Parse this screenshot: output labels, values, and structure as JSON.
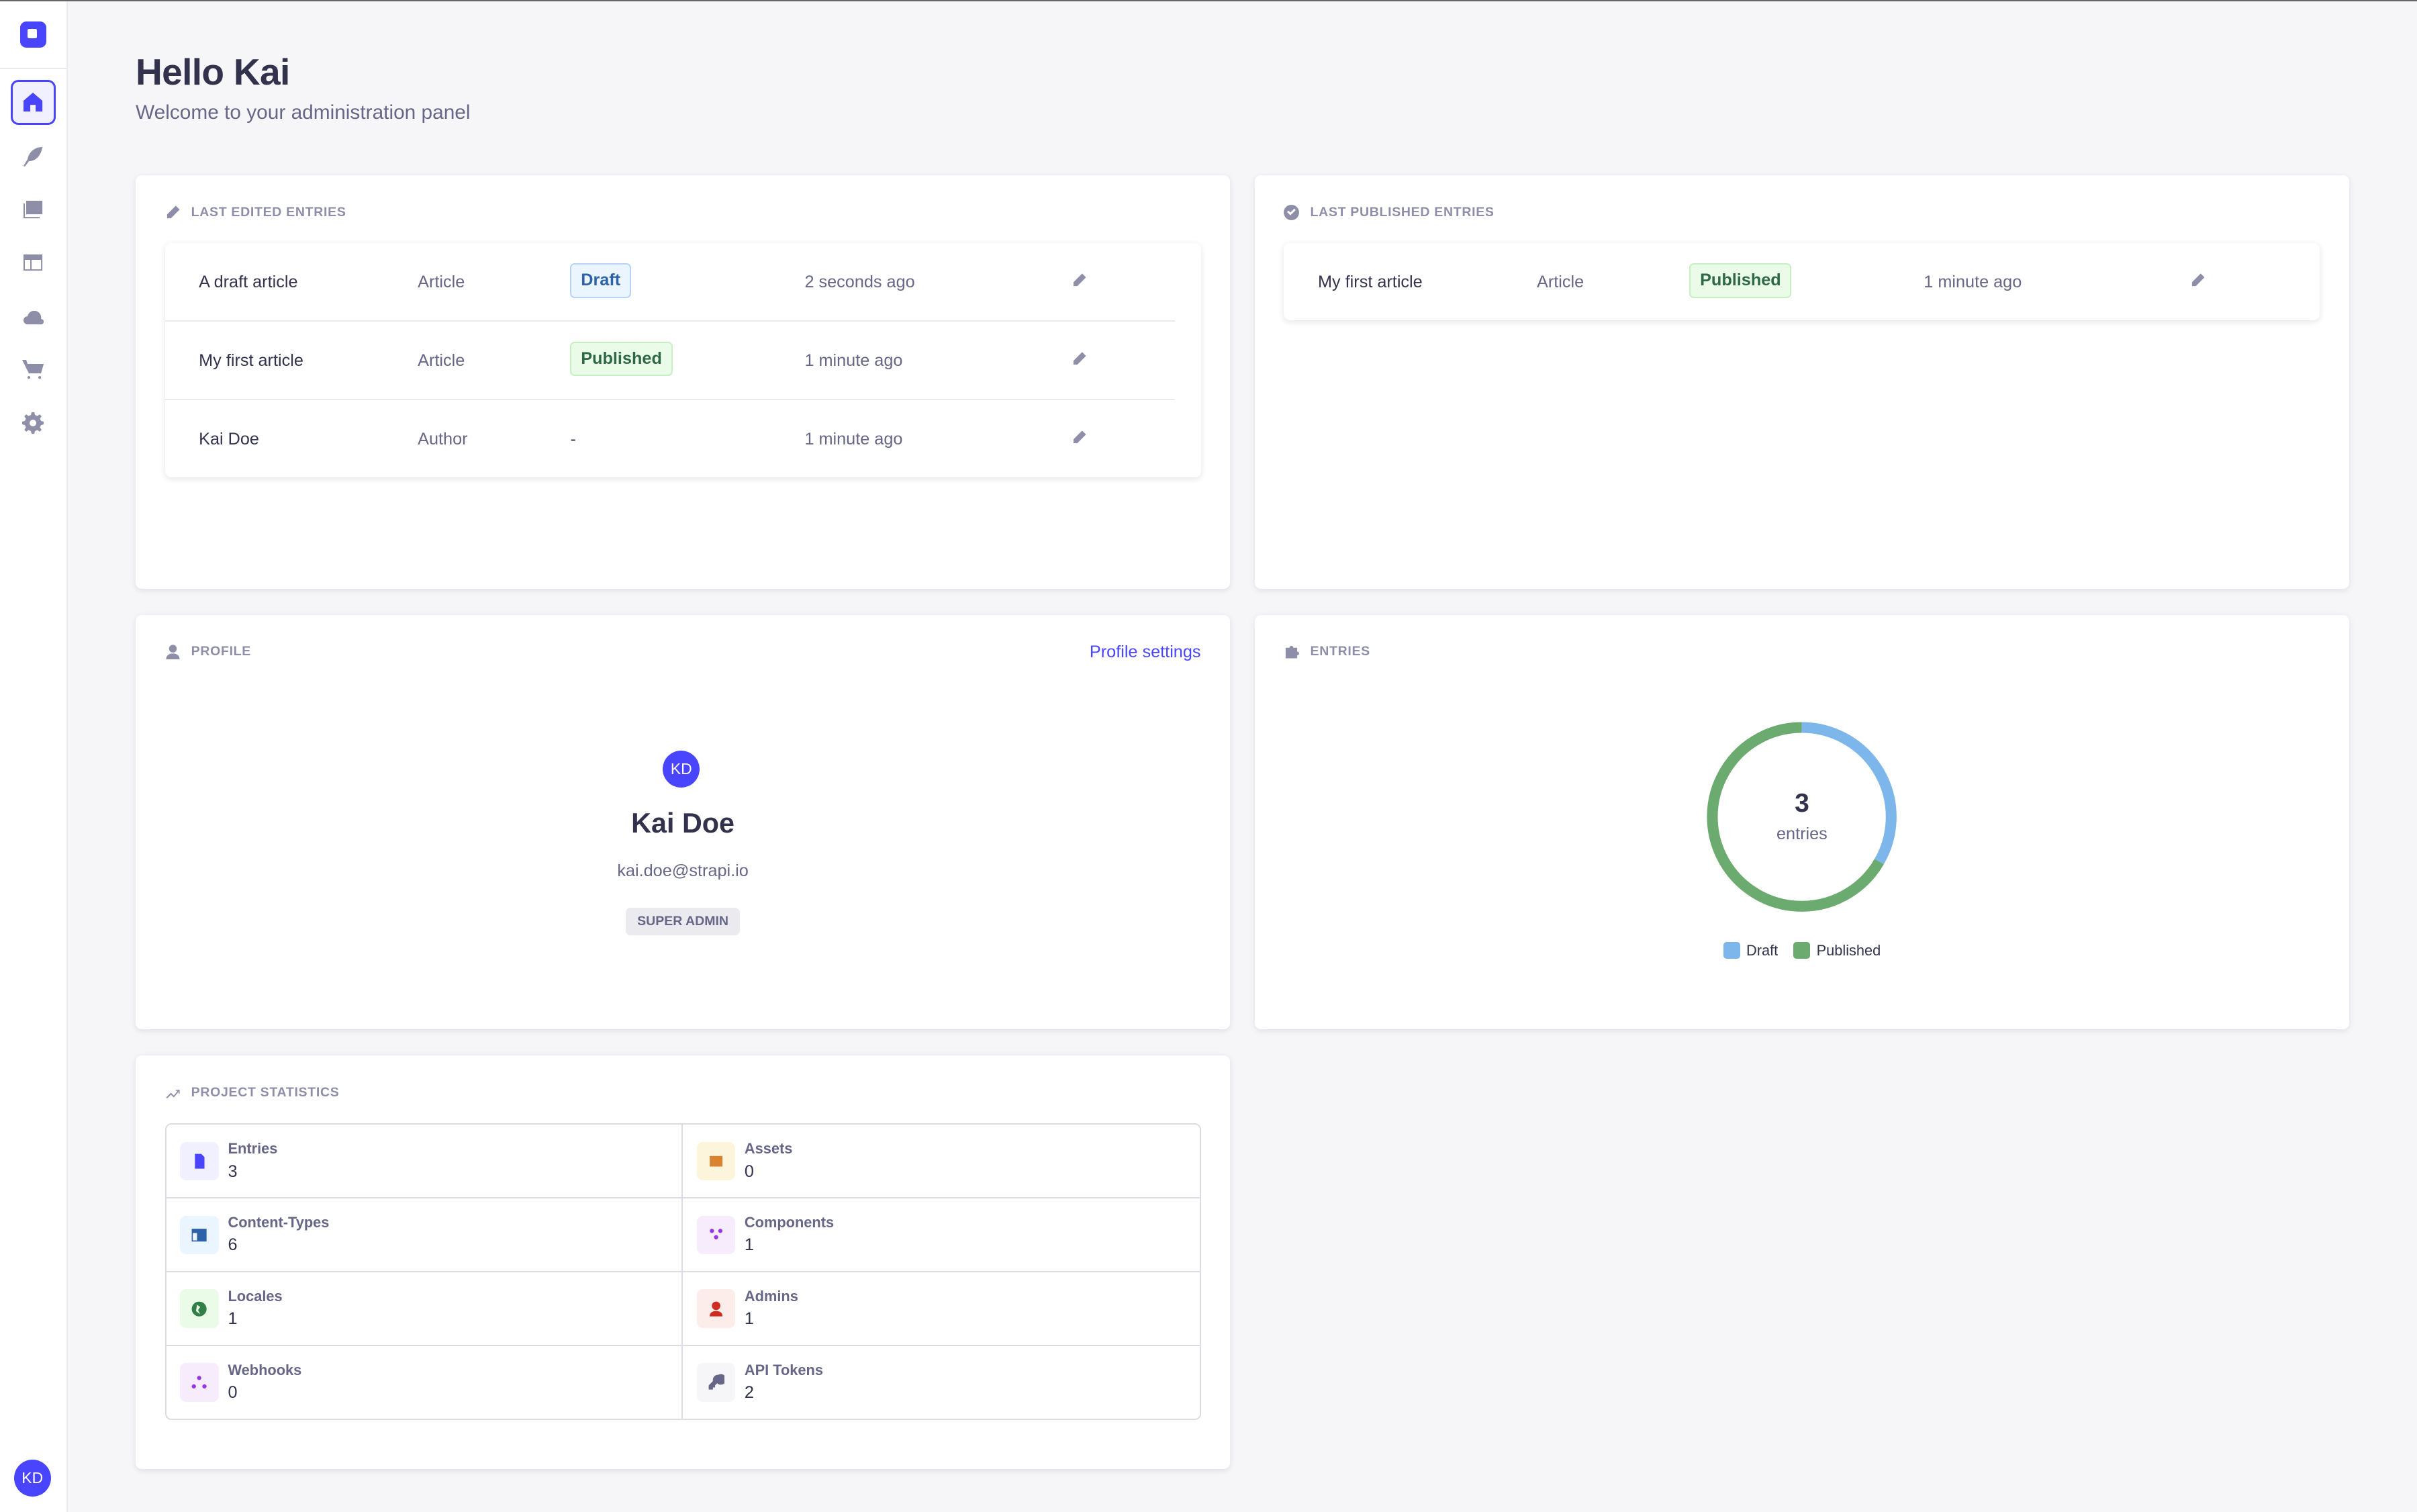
{
  "sidebar": {
    "items": [
      "home",
      "content-manager",
      "media-library",
      "content-type-builder",
      "cloud",
      "marketplace",
      "settings"
    ],
    "user_initials": "KD",
    "accent": "#4945ff"
  },
  "header": {
    "title": "Hello Kai",
    "subtitle": "Welcome to your administration panel"
  },
  "last_edited": {
    "title": "LAST EDITED ENTRIES",
    "rows": [
      {
        "name": "A draft article",
        "type": "Article",
        "status": "Draft",
        "time": "2 seconds ago"
      },
      {
        "name": "My first article",
        "type": "Article",
        "status": "Published",
        "time": "1 minute ago"
      },
      {
        "name": "Kai Doe",
        "type": "Author",
        "status": "-",
        "time": "1 minute ago"
      }
    ]
  },
  "last_published": {
    "title": "LAST PUBLISHED ENTRIES",
    "rows": [
      {
        "name": "My first article",
        "type": "Article",
        "status": "Published",
        "time": "1 minute ago"
      }
    ]
  },
  "profile": {
    "title": "PROFILE",
    "settings_link": "Profile settings",
    "initials": "KD",
    "name": "Kai Doe",
    "email": "kai.doe@strapi.io",
    "role": "SUPER ADMIN"
  },
  "entries": {
    "title": "ENTRIES",
    "total": "3",
    "total_label": "entries",
    "legend": [
      {
        "label": "Draft",
        "value": 1,
        "color": "#7db6ea"
      },
      {
        "label": "Published",
        "value": 2,
        "color": "#6cab6f"
      }
    ]
  },
  "stats": {
    "title": "PROJECT STATISTICS",
    "items": [
      {
        "label": "Entries",
        "value": "3",
        "icon": "file-icon",
        "color": "#4945ff",
        "bg": "#f0f0ff"
      },
      {
        "label": "Assets",
        "value": "0",
        "icon": "image-icon",
        "color": "#d9822f",
        "bg": "#fdf4dc"
      },
      {
        "label": "Content-Types",
        "value": "6",
        "icon": "layout-icon",
        "color": "#2d62a8",
        "bg": "#eaf5ff"
      },
      {
        "label": "Components",
        "value": "1",
        "icon": "puzzle-icon",
        "color": "#9736e8",
        "bg": "#f6ecfc"
      },
      {
        "label": "Locales",
        "value": "1",
        "icon": "globe-icon",
        "color": "#328048",
        "bg": "#eafbe7"
      },
      {
        "label": "Admins",
        "value": "1",
        "icon": "user-icon",
        "color": "#d02b20",
        "bg": "#fcecea"
      },
      {
        "label": "Webhooks",
        "value": "0",
        "icon": "webhook-icon",
        "color": "#9736e8",
        "bg": "#f6ecfc"
      },
      {
        "label": "API Tokens",
        "value": "2",
        "icon": "key-icon",
        "color": "#666687",
        "bg": "#f6f6f9"
      }
    ]
  }
}
